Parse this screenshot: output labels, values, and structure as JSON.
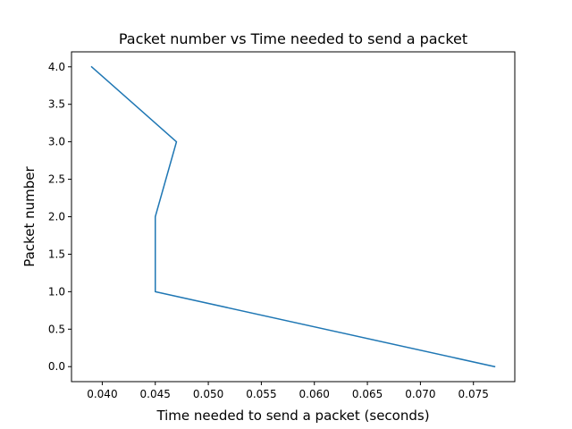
{
  "chart_data": {
    "type": "line",
    "title": "Packet number vs Time needed to send a packet",
    "xlabel": "Time needed to send a packet (seconds)",
    "ylabel": "Packet number",
    "xlim": [
      0.0371,
      0.0789
    ],
    "ylim": [
      -0.2,
      4.2
    ],
    "xticks": [
      0.04,
      0.045,
      0.05,
      0.055,
      0.06,
      0.065,
      0.07,
      0.075
    ],
    "xtick_labels": [
      "0.040",
      "0.045",
      "0.050",
      "0.055",
      "0.060",
      "0.065",
      "0.070",
      "0.075"
    ],
    "yticks": [
      0.0,
      0.5,
      1.0,
      1.5,
      2.0,
      2.5,
      3.0,
      3.5,
      4.0
    ],
    "ytick_labels": [
      "0.0",
      "0.5",
      "1.0",
      "1.5",
      "2.0",
      "2.5",
      "3.0",
      "3.5",
      "4.0"
    ],
    "grid": false,
    "series": [
      {
        "color": "#1f77b4",
        "x": [
          0.077,
          0.045,
          0.045,
          0.047,
          0.039
        ],
        "y": [
          0,
          1,
          2,
          3,
          4
        ]
      }
    ]
  }
}
